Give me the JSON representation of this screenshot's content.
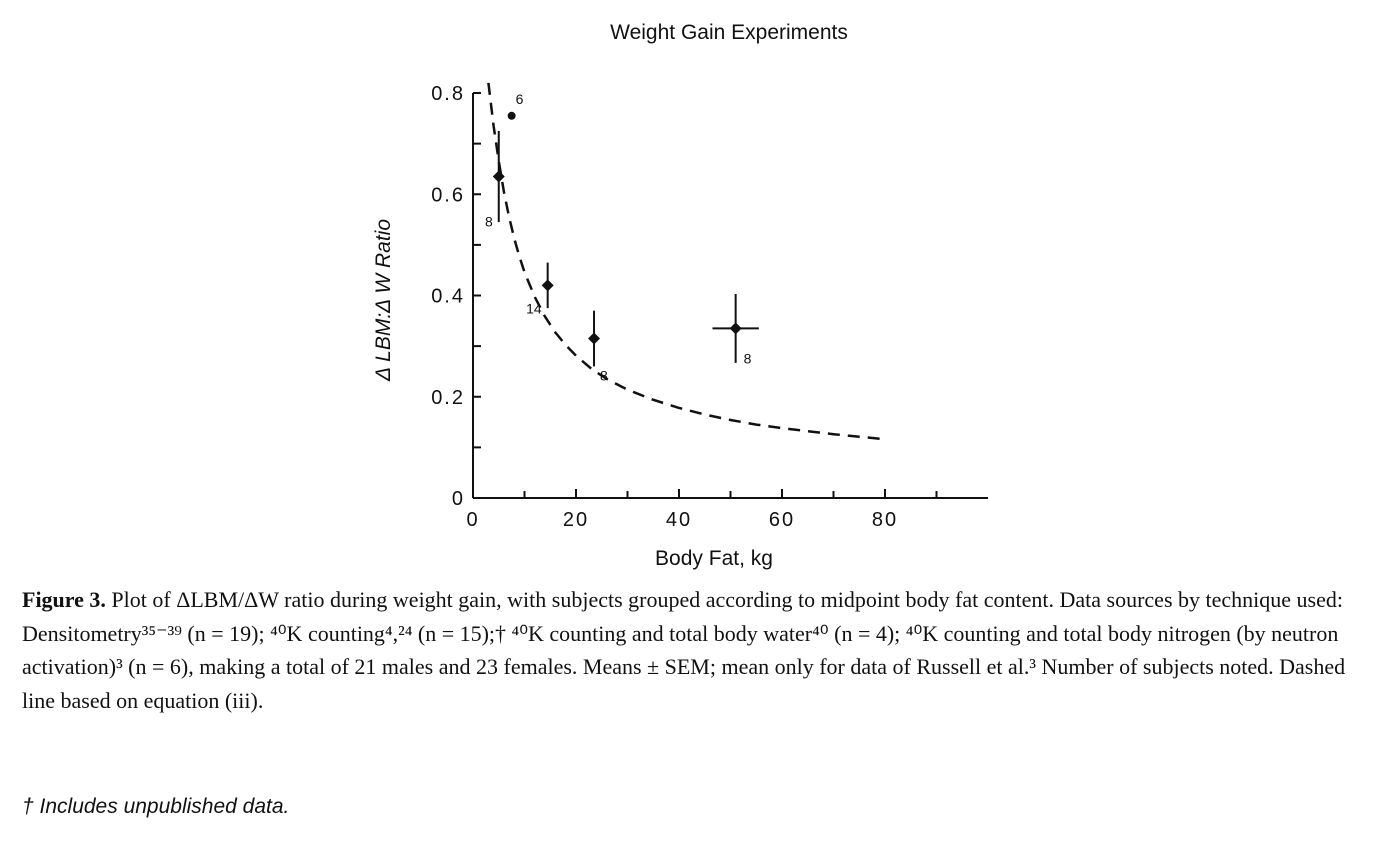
{
  "chart_data": {
    "type": "scatter",
    "title": "Weight Gain Experiments",
    "xlabel": "Body Fat, kg",
    "ylabel": "Δ LBM:Δ W Ratio",
    "xlim": [
      0,
      100
    ],
    "ylim": [
      0,
      0.8
    ],
    "x_ticks": [
      0,
      20,
      40,
      60,
      80
    ],
    "y_ticks": [
      0,
      0.2,
      0.4,
      0.6,
      0.8
    ],
    "x_tick_labels": [
      "0",
      "20",
      "40",
      "60",
      "80"
    ],
    "y_tick_labels": [
      "0",
      "0.2",
      "0.4",
      "0.6",
      "0.8"
    ],
    "points": [
      {
        "x": 7.5,
        "y": 0.755,
        "n": "6",
        "marker": "dot",
        "y_err": null,
        "x_err": null
      },
      {
        "x": 5,
        "y": 0.635,
        "n": "8",
        "marker": "diamond",
        "y_err": 0.09,
        "x_err": null
      },
      {
        "x": 14.5,
        "y": 0.42,
        "n": "14",
        "marker": "diamond",
        "y_err": 0.045,
        "x_err": null
      },
      {
        "x": 23.5,
        "y": 0.315,
        "n": "8",
        "marker": "diamond",
        "y_err": 0.055,
        "x_err": null
      },
      {
        "x": 51,
        "y": 0.335,
        "n": "8",
        "marker": "diamond",
        "y_err": 0.068,
        "x_err": 4.5
      }
    ],
    "dashed_line": {
      "x": [
        3,
        4,
        5,
        6,
        7,
        8,
        9,
        10,
        12,
        14,
        16,
        18,
        20,
        23,
        26,
        30,
        35,
        40,
        45,
        50,
        55,
        60,
        65,
        70,
        75,
        80
      ],
      "y": [
        0.82,
        0.735,
        0.665,
        0.605,
        0.555,
        0.513,
        0.477,
        0.446,
        0.397,
        0.358,
        0.327,
        0.302,
        0.281,
        0.255,
        0.235,
        0.214,
        0.194,
        0.178,
        0.165,
        0.154,
        0.145,
        0.138,
        0.132,
        0.126,
        0.121,
        0.116
      ]
    },
    "grid": false,
    "legend": "none"
  },
  "caption": {
    "label": "Figure 3.",
    "text": "Plot of ΔLBM/ΔW ratio during weight gain, with subjects grouped according to midpoint body fat content. Data sources by technique used: Densitometry³⁵⁻³⁹ (n = 19); ⁴⁰K counting⁴,²⁴ (n = 15);† ⁴⁰K counting and total body water⁴⁰ (n = 4); ⁴⁰K counting and total body nitrogen (by neutron activation)³ (n = 6), making a total of 21 males and 23 females. Means ± SEM; mean only for data of Russell et al.³ Number of subjects noted. Dashed line based on equation (iii)."
  },
  "footnote": "† Includes unpublished data."
}
